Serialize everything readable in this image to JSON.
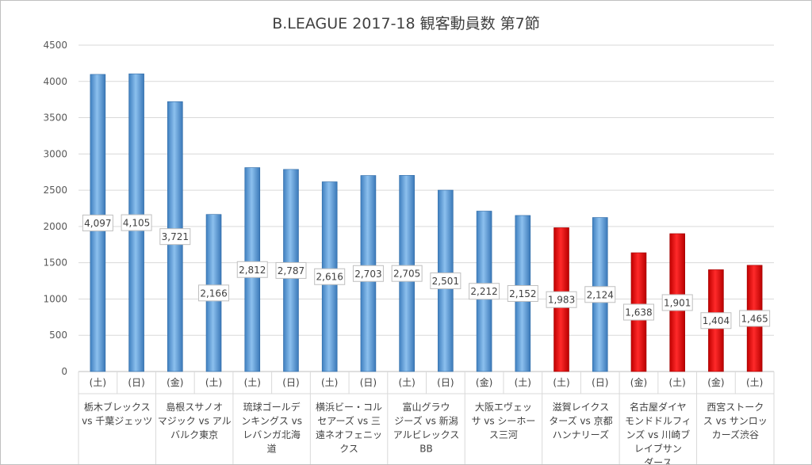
{
  "chart_data": {
    "type": "bar",
    "title": "B.LEAGUE 2017-18 観客動員数 第7節",
    "xlabel": "",
    "ylabel": "",
    "ylim": [
      0,
      4500
    ],
    "yticks": [
      0,
      500,
      1000,
      1500,
      2000,
      2500,
      3000,
      3500,
      4000,
      4500
    ],
    "grid": true,
    "legend": "none",
    "colors": {
      "blue": "#5b9bd5",
      "red": "#e00000"
    },
    "groups": [
      {
        "match": [
          "栃木ブレックス",
          "vs 千葉ジェッツ"
        ],
        "games": [
          {
            "day": "(土)",
            "value": 4097,
            "label": "4,097",
            "color": "blue"
          },
          {
            "day": "(日)",
            "value": 4105,
            "label": "4,105",
            "color": "blue"
          }
        ]
      },
      {
        "match": [
          "島根スサノオ",
          "マジック vs アル",
          "バルク東京"
        ],
        "games": [
          {
            "day": "(金)",
            "value": 3721,
            "label": "3,721",
            "color": "blue"
          },
          {
            "day": "(土)",
            "value": 2166,
            "label": "2,166",
            "color": "blue"
          }
        ]
      },
      {
        "match": [
          "琉球ゴールデ",
          "ンキングス vs",
          "レバンガ北海",
          "道"
        ],
        "games": [
          {
            "day": "(土)",
            "value": 2812,
            "label": "2,812",
            "color": "blue"
          },
          {
            "day": "(日)",
            "value": 2787,
            "label": "2,787",
            "color": "blue"
          }
        ]
      },
      {
        "match": [
          "横浜ビー・コル",
          "セアーズ vs 三",
          "遠ネオフェニッ",
          "クス"
        ],
        "games": [
          {
            "day": "(土)",
            "value": 2616,
            "label": "2,616",
            "color": "blue"
          },
          {
            "day": "(日)",
            "value": 2703,
            "label": "2,703",
            "color": "blue"
          }
        ]
      },
      {
        "match": [
          "富山グラウ",
          "ジーズ vs 新潟",
          "アルビレックス",
          "BB"
        ],
        "games": [
          {
            "day": "(土)",
            "value": 2705,
            "label": "2,705",
            "color": "blue"
          },
          {
            "day": "(日)",
            "value": 2501,
            "label": "2,501",
            "color": "blue"
          }
        ]
      },
      {
        "match": [
          "大阪エヴェッ",
          "サ vs シーホー",
          "ス三河"
        ],
        "games": [
          {
            "day": "(金)",
            "value": 2212,
            "label": "2,212",
            "color": "blue"
          },
          {
            "day": "(土)",
            "value": 2152,
            "label": "2,152",
            "color": "blue"
          }
        ]
      },
      {
        "match": [
          "滋賀レイクス",
          "ターズ vs 京都",
          "ハンナリーズ"
        ],
        "games": [
          {
            "day": "(土)",
            "value": 1983,
            "label": "1,983",
            "color": "red"
          },
          {
            "day": "(日)",
            "value": 2124,
            "label": "2,124",
            "color": "blue"
          }
        ]
      },
      {
        "match": [
          "名古屋ダイヤ",
          "モンドドルフィ",
          "ンズ vs 川崎ブ",
          "レイブサン",
          "ダース"
        ],
        "games": [
          {
            "day": "(金)",
            "value": 1638,
            "label": "1,638",
            "color": "red"
          },
          {
            "day": "(土)",
            "value": 1901,
            "label": "1,901",
            "color": "red"
          }
        ]
      },
      {
        "match": [
          "西宮ストーク",
          "ス vs サンロッ",
          "カーズ渋谷"
        ],
        "games": [
          {
            "day": "(金)",
            "value": 1404,
            "label": "1,404",
            "color": "red"
          },
          {
            "day": "(土)",
            "value": 1465,
            "label": "1,465",
            "color": "red"
          }
        ]
      }
    ]
  }
}
